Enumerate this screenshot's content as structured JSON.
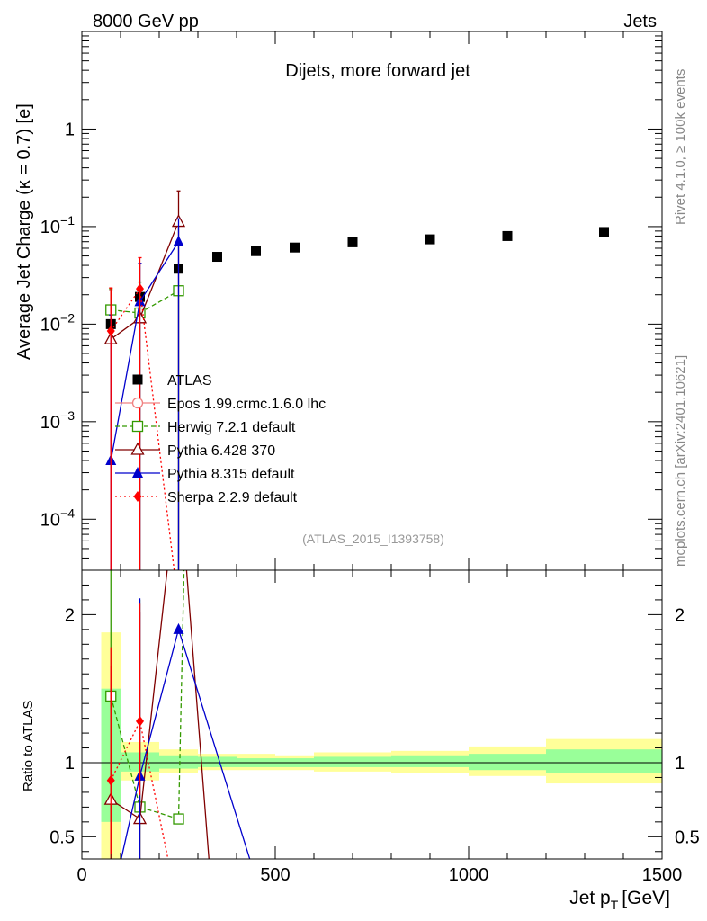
{
  "header": {
    "left": "8000 GeV pp",
    "right": "Jets"
  },
  "side_label_top": "Rivet 4.1.0, ≥ 100k events",
  "side_label_bottom": "mcplots.cern.ch [arXiv:2401.10621]",
  "colors": {
    "data": "#000000",
    "epos": "#f08080",
    "herwig": "#339900",
    "pythia6": "#800000",
    "pythia8": "#0000cc",
    "sherpa": "#ff0000",
    "band_inner": "#99ff99",
    "band_outer": "#ffff99"
  },
  "chart_data": [
    {
      "type": "scatter",
      "panel": "main",
      "title": "Dijets, more forward jet",
      "analysis_tag": "(ATLAS_2015_I1393758)",
      "ylabel": "Average Jet Charge (κ = 0.7) [e]",
      "yscale": "log",
      "xlim": [
        0,
        1500
      ],
      "ylim": [
        3e-05,
        10
      ],
      "y_ticks": [
        {
          "value": 0.0001,
          "base": "10",
          "exp": "−4"
        },
        {
          "value": 0.001,
          "base": "10",
          "exp": "−3"
        },
        {
          "value": 0.01,
          "base": "10",
          "exp": "−2"
        },
        {
          "value": 0.1,
          "base": "10",
          "exp": "−1"
        },
        {
          "value": 1,
          "base": "1",
          "exp": ""
        }
      ],
      "series": [
        {
          "name": "ATLAS",
          "key": "data",
          "marker": "square-filled",
          "x": [
            75,
            150,
            250,
            350,
            450,
            550,
            700,
            900,
            1100,
            1350
          ],
          "y": [
            0.01,
            0.019,
            0.037,
            0.049,
            0.056,
            0.061,
            0.069,
            0.074,
            0.08,
            0.088
          ]
        },
        {
          "name": "Epos 1.99.crmc.1.6.0 lhc",
          "key": "epos",
          "marker": "circle-open",
          "dash": "",
          "x": [],
          "y": []
        },
        {
          "name": "Herwig 7.2.1 default",
          "key": "herwig",
          "marker": "square-open",
          "dash": "5,3",
          "x": [
            75,
            150,
            250
          ],
          "y": [
            0.014,
            0.013,
            0.022
          ],
          "err_low": [
            0.006,
            0.013,
            0.022
          ],
          "err_high": [
            0.009,
            0.014,
            0.0
          ]
        },
        {
          "name": "Pythia 6.428 370",
          "key": "pythia6",
          "marker": "triangle-open",
          "dash": "",
          "x": [
            75,
            150,
            250
          ],
          "y": [
            0.007,
            0.0115,
            0.112
          ],
          "err_low": [
            0.007,
            0.0115,
            0.112
          ],
          "err_high": [
            0.015,
            0.03,
            0.12
          ]
        },
        {
          "name": "Pythia 8.315 default",
          "key": "pythia8",
          "marker": "triangle-filled",
          "dash": "",
          "x": [
            75,
            150,
            250
          ],
          "y": [
            0.0004,
            0.017,
            0.07
          ],
          "err_low": [
            0.0004,
            0.017,
            0.07
          ],
          "err_high": [
            0.012,
            0.025,
            0.05
          ]
        },
        {
          "name": "Sherpa 2.2.9 default",
          "key": "sherpa",
          "marker": "diamond-filled",
          "dash": "2,3",
          "x": [
            75,
            150,
            250
          ],
          "y": [
            0.0085,
            0.023,
            0.0
          ],
          "err_low": [
            0.0085,
            0.023,
            0.0
          ],
          "err_high": [
            0.015,
            0.025,
            0.0
          ]
        }
      ]
    },
    {
      "type": "line",
      "panel": "ratio",
      "ylabel": "Ratio to ATLAS",
      "xlabel_main": "Jet p",
      "xlabel_sub": "T",
      "xlabel_unit": "[GeV]",
      "xlim": [
        0,
        1500
      ],
      "ylim": [
        0.35,
        2.3
      ],
      "x_ticks": [
        "0",
        "500",
        "1000",
        "1500"
      ],
      "x_tick_values": [
        0,
        500,
        1000,
        1500
      ],
      "y_ticks": [
        "0.5",
        "1",
        "2"
      ],
      "y_tick_values": [
        0.5,
        1,
        2
      ],
      "bands": [
        {
          "x0": 50,
          "x1": 100,
          "inner": [
            0.6,
            1.5
          ],
          "outer": [
            0.35,
            1.88
          ]
        },
        {
          "x0": 100,
          "x1": 200,
          "inner": [
            0.94,
            1.07
          ],
          "outer": [
            0.88,
            1.14
          ]
        },
        {
          "x0": 200,
          "x1": 300,
          "inner": [
            0.96,
            1.05
          ],
          "outer": [
            0.93,
            1.09
          ]
        },
        {
          "x0": 300,
          "x1": 400,
          "inner": [
            0.97,
            1.04
          ],
          "outer": [
            0.95,
            1.06
          ]
        },
        {
          "x0": 400,
          "x1": 500,
          "inner": [
            0.97,
            1.03
          ],
          "outer": [
            0.95,
            1.06
          ]
        },
        {
          "x0": 500,
          "x1": 600,
          "inner": [
            0.97,
            1.03
          ],
          "outer": [
            0.95,
            1.05
          ]
        },
        {
          "x0": 600,
          "x1": 800,
          "inner": [
            0.97,
            1.04
          ],
          "outer": [
            0.94,
            1.07
          ]
        },
        {
          "x0": 800,
          "x1": 1000,
          "inner": [
            0.97,
            1.05
          ],
          "outer": [
            0.93,
            1.08
          ]
        },
        {
          "x0": 1000,
          "x1": 1200,
          "inner": [
            0.95,
            1.06
          ],
          "outer": [
            0.91,
            1.11
          ]
        },
        {
          "x0": 1200,
          "x1": 1500,
          "inner": [
            0.93,
            1.09
          ],
          "outer": [
            0.86,
            1.16
          ]
        }
      ],
      "series": [
        {
          "name": "Herwig 7.2.1 default",
          "key": "herwig",
          "marker": "square-open",
          "dash": "5,3",
          "x": [
            75,
            150,
            250
          ],
          "y": [
            1.45,
            0.7,
            0.62
          ],
          "err_low": [
            0.6,
            0.6,
            0.0
          ],
          "err_high": [
            0.9,
            1.4,
            0.0
          ],
          "exit": [
            {
              "x": 265,
              "y": 2.4
            }
          ]
        },
        {
          "name": "Pythia 6.428 370",
          "key": "pythia6",
          "marker": "triangle-open",
          "dash": "",
          "x": [
            75,
            150,
            250
          ],
          "y": [
            0.75,
            0.62,
            3.0
          ],
          "err_low": [
            0.6,
            0.4,
            0.0
          ],
          "err_high": [
            0.9,
            1.4,
            0.0
          ],
          "exit": [
            {
              "x": 330,
              "y": 0.3
            }
          ]
        },
        {
          "name": "Pythia 8.315 default",
          "key": "pythia8",
          "marker": "triangle-filled",
          "dash": "",
          "x": [
            75,
            150,
            250
          ],
          "y": [
            0.04,
            0.91,
            1.9
          ],
          "err_low": [
            0.0,
            0.6,
            0.0
          ],
          "err_high": [
            0.0,
            1.2,
            0.0
          ],
          "exit": [
            {
              "x": 440,
              "y": 0.3
            }
          ]
        },
        {
          "name": "Sherpa 2.2.9 default",
          "key": "sherpa",
          "marker": "diamond-filled",
          "dash": "2,3",
          "x": [
            75,
            150,
            250
          ],
          "y": [
            0.88,
            1.28,
            0.0
          ],
          "err_low": [
            0.5,
            0.5,
            0.0
          ],
          "err_high": [
            0.9,
            0.8,
            0.0
          ],
          "exit": [
            {
              "x": 220,
              "y": 0.3
            }
          ]
        }
      ]
    }
  ]
}
